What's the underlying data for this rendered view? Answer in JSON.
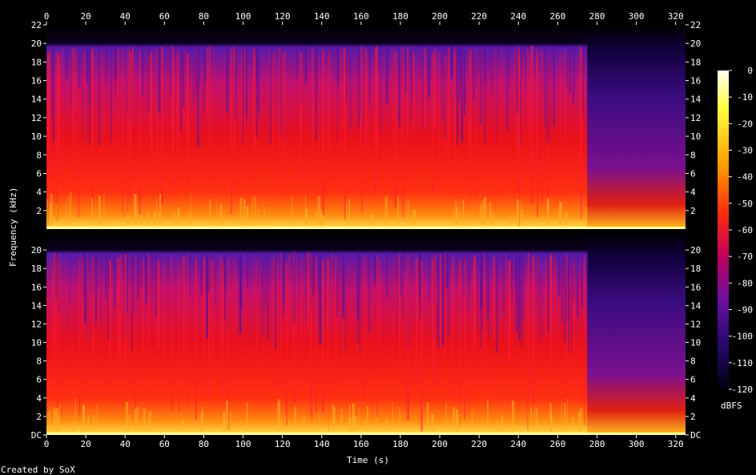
{
  "chart_data": {
    "type": "heatmap",
    "title": "",
    "xlabel": "Time (s)",
    "ylabel": "Frequency (kHz)",
    "xlim": [
      0,
      325
    ],
    "ylim": [
      0,
      22
    ],
    "x_ticks": [
      "0",
      "20",
      "40",
      "60",
      "80",
      "100",
      "120",
      "140",
      "160",
      "180",
      "200",
      "220",
      "240",
      "260",
      "280",
      "300",
      "320"
    ],
    "y_ticks_top_channel": [
      "22",
      "20",
      "18",
      "16",
      "14",
      "12",
      "10",
      "8",
      "6",
      "4",
      "2"
    ],
    "y_ticks_bottom_channel": [
      "20",
      "18",
      "16",
      "14",
      "12",
      "10",
      "8",
      "6",
      "4",
      "2",
      "DC"
    ],
    "channels": 2,
    "colorbar": {
      "label": "dBFS",
      "ticks": [
        "0",
        "-10",
        "-20",
        "-30",
        "-40",
        "-50",
        "-60",
        "-70",
        "-80",
        "-90",
        "-100",
        "-110",
        "-120"
      ],
      "range": [
        -120,
        0
      ]
    },
    "credit": "Created by SoX",
    "colors": {
      "background": "#000000",
      "hot": "#ffff40",
      "mid": "#ff2020",
      "cool": "#5a0fa0",
      "cold": "#1a0040"
    },
    "notes_visible": {
      "content_bandwidth_khz": 20,
      "quiet_section_start_s": 275
    }
  }
}
